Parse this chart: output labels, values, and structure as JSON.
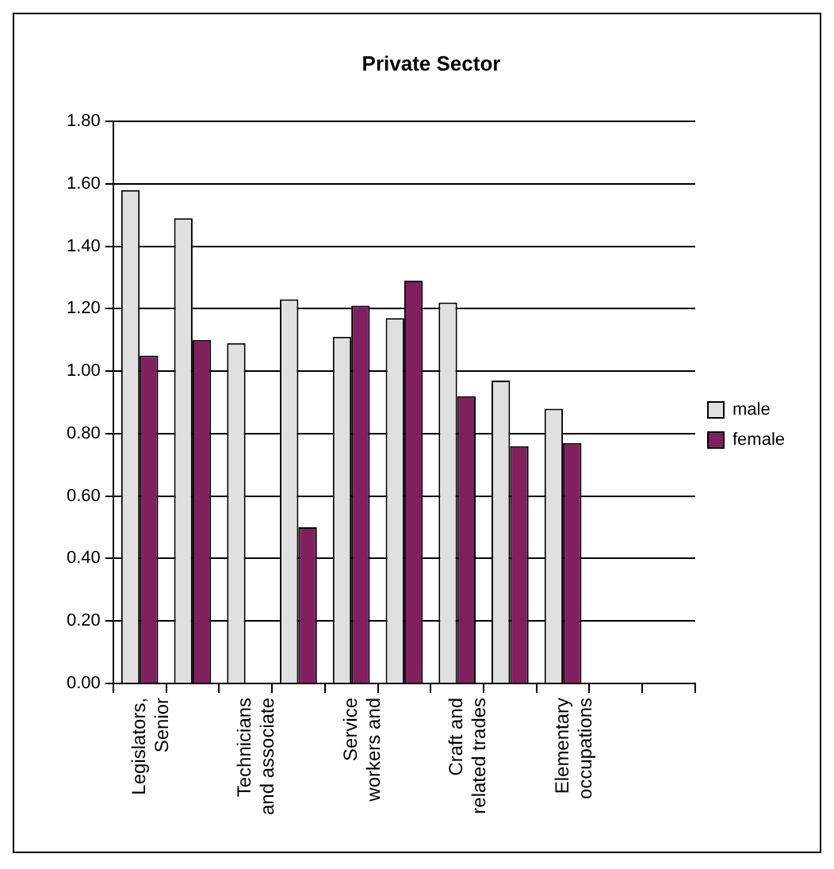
{
  "chart_data": {
    "type": "bar",
    "title": "Private Sector",
    "categories": [
      "Legislators, Senior",
      null,
      "Technicians and associate",
      null,
      "Service workers and",
      null,
      "Craft and related trades",
      null,
      "Elementary occupations",
      null,
      null
    ],
    "series": [
      {
        "name": "male",
        "color": "#e0e0e0",
        "values": [
          1.58,
          1.49,
          1.09,
          1.23,
          1.11,
          1.17,
          1.22,
          0.97,
          0.88,
          null,
          null
        ]
      },
      {
        "name": "female",
        "color": "#82205f",
        "values": [
          1.05,
          1.1,
          null,
          0.5,
          1.21,
          1.29,
          0.92,
          0.76,
          0.77,
          null,
          null
        ]
      }
    ],
    "ylim": [
      0,
      1.8
    ],
    "yticks": [
      {
        "value": 0,
        "label": "0.00"
      },
      {
        "value": 0.2,
        "label": "0.20"
      },
      {
        "value": 0.4,
        "label": "0.40"
      },
      {
        "value": 0.6,
        "label": "0.60"
      },
      {
        "value": 0.8,
        "label": "0.80"
      },
      {
        "value": 1,
        "label": "1.00"
      },
      {
        "value": 1.2,
        "label": "1.20"
      },
      {
        "value": 1.4,
        "label": "1.40"
      },
      {
        "value": 1.6,
        "label": "1.60"
      },
      {
        "value": 1.8,
        "label": "1.80"
      }
    ],
    "grid": "y",
    "legend": "right"
  }
}
